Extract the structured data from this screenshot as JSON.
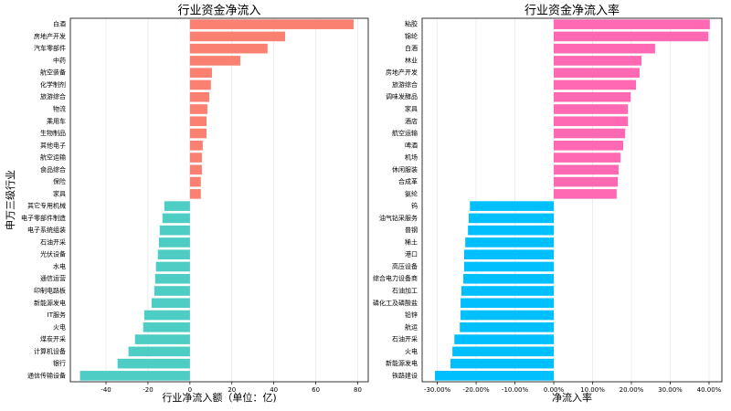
{
  "chart_data": [
    {
      "type": "barh",
      "title": "行业资金净流入",
      "xlabel": "行业净流入额（单位：亿)",
      "ylabel": "申万三级行业",
      "categories": [
        "白酒",
        "房地产开发",
        "汽车零部件",
        "中药",
        "航空装备",
        "化学制剂",
        "旅游综合",
        "物流",
        "乘用车",
        "生物制品",
        "其他电子",
        "航空运输",
        "食品综合",
        "保险",
        "家具",
        "其它专用机械",
        "电子零部件制造",
        "电子系统组装",
        "石油开采",
        "光伏设备",
        "水电",
        "通信运营",
        "印制电路板",
        "新能源发电",
        "IT服务",
        "火电",
        "煤炭开采",
        "计算机设备",
        "银行",
        "通信传输设备"
      ],
      "values": [
        78,
        45.4,
        37,
        24,
        10.5,
        10,
        9.2,
        8.3,
        7.9,
        7.9,
        6.1,
        5.7,
        5.7,
        5.2,
        5.2,
        -12.2,
        -13.1,
        -14.4,
        -14.8,
        -15.3,
        -16.2,
        -16.6,
        -17,
        -18.3,
        -21.8,
        -22.3,
        -26.2,
        -29.3,
        -34.5,
        -52.4
      ],
      "color_positive": "#fa8072",
      "color_negative": "#4ecdc4",
      "xlim": [
        -57,
        85
      ],
      "xticks": [
        -40,
        -20,
        0,
        20,
        40,
        60,
        80
      ],
      "grid": true
    },
    {
      "type": "barh",
      "title": "行业资金净流入率",
      "xlabel": "净流入率",
      "categories": [
        "粘胶",
        "锦纶",
        "白酒",
        "林业",
        "房地产开发",
        "旅游综合",
        "调味发酵品",
        "家具",
        "酒店",
        "航空运输",
        "啤酒",
        "机场",
        "休闲服装",
        "合成革",
        "氨纶",
        "钨",
        "油气钻采服务",
        "普钢",
        "稀土",
        "港口",
        "高压设备",
        "综合电力设备商",
        "石油加工",
        "磷化工及磷酸盐",
        "铅锌",
        "航运",
        "石油开采",
        "火电",
        "新能源发电",
        "铁路建设"
      ],
      "values": [
        40.2,
        39.8,
        26.1,
        22.6,
        22.1,
        21.2,
        19.8,
        19.1,
        19.1,
        18.4,
        17.9,
        17.2,
        16.7,
        16.5,
        16.2,
        -21.6,
        -21.9,
        -22.1,
        -22.8,
        -23.1,
        -23.1,
        -23.3,
        -23.8,
        -24,
        -24,
        -24.2,
        -25.6,
        -26.1,
        -26.6,
        -30.6
      ],
      "color_positive": "#ff69b4",
      "color_negative": "#00bfff",
      "xlim": [
        -33.9,
        43.3
      ],
      "xticks": [
        {
          "value": -30,
          "label": "-30.00%"
        },
        {
          "value": -20,
          "label": "-20.00%"
        },
        {
          "value": -10,
          "label": "-10.00%"
        },
        {
          "value": 0,
          "label": "0.00%"
        },
        {
          "value": 10,
          "label": "10.00%"
        },
        {
          "value": 20,
          "label": "20.00%"
        },
        {
          "value": 30,
          "label": "30.00%"
        },
        {
          "value": 40,
          "label": "40.00%"
        }
      ],
      "grid": true
    }
  ]
}
